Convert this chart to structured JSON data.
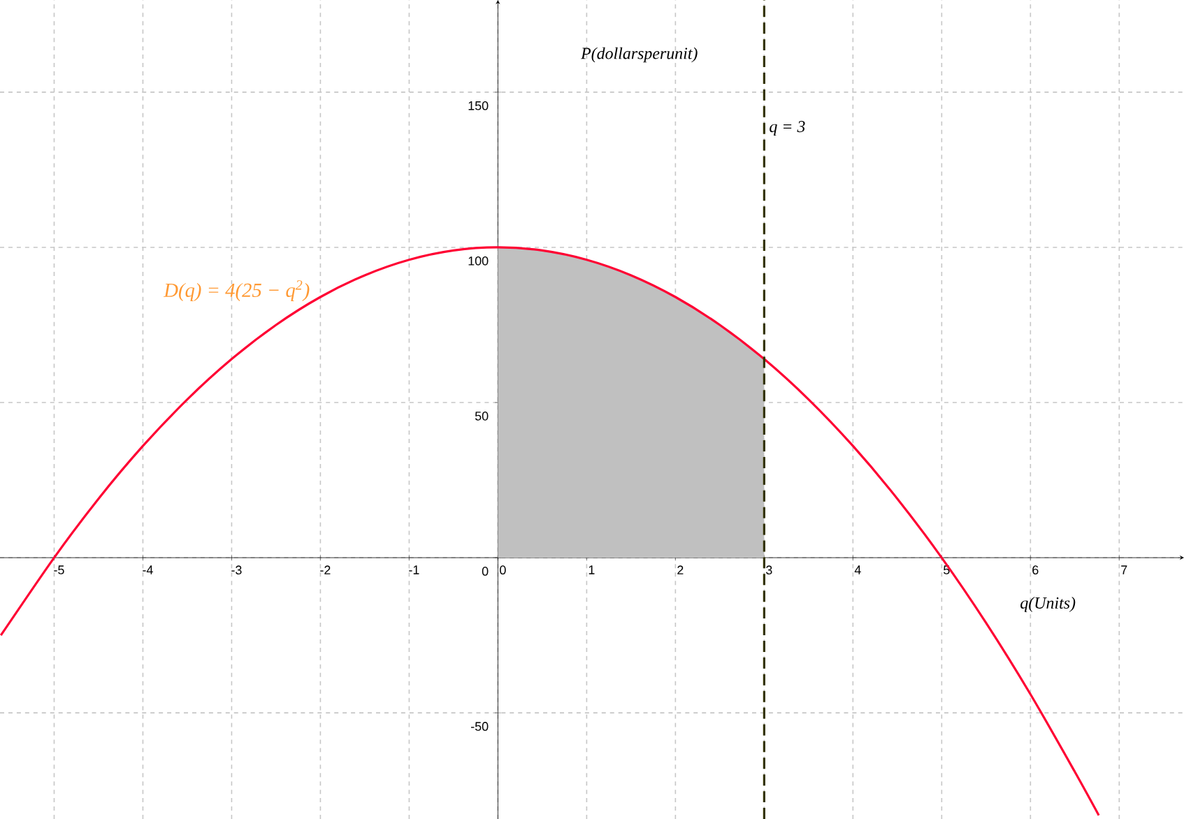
{
  "chart_data": {
    "type": "line",
    "xlabel": "q(Units)",
    "ylabel": "P(dollarsperunit)",
    "xlim": [
      -5.61,
      7.73
    ],
    "ylim": [
      -84.2,
      179.7
    ],
    "xticks": [
      -5,
      -4,
      -3,
      -2,
      -1,
      0,
      1,
      2,
      3,
      4,
      5,
      6,
      7
    ],
    "yticks": [
      -50,
      0,
      50,
      100,
      150
    ],
    "grid": true,
    "marker": "none",
    "series": [
      {
        "type": "area",
        "color": "#c0c0c0",
        "x": [
          0,
          0.5,
          1,
          1.5,
          2,
          2.5,
          3
        ],
        "values": [
          100,
          99,
          96,
          91,
          84,
          75,
          64
        ]
      },
      {
        "color": "#ff0033",
        "line_style": "solid",
        "x": [
          -5.6,
          -5,
          -4.5,
          -4,
          -3.5,
          -3,
          -2.5,
          -2,
          -1.5,
          -1,
          -0.5,
          0,
          0.5,
          1,
          1.5,
          2,
          2.5,
          3,
          3.5,
          4,
          4.5,
          5,
          5.5,
          6,
          6.5,
          6.77
        ],
        "values": [
          -25,
          0,
          19,
          36,
          51,
          64,
          75,
          84,
          91,
          96,
          99,
          100,
          99,
          96,
          91,
          84,
          75,
          64,
          51,
          36,
          19,
          0,
          -21,
          -44,
          -69,
          -83
        ]
      }
    ],
    "ref_lines": [
      {
        "axis": "x",
        "value": 3,
        "label": "q = 3",
        "color": "#333300",
        "line_style": "dashed"
      }
    ],
    "annotations": [
      "D(q) = 4(25 − q$^{2}$)"
    ]
  }
}
